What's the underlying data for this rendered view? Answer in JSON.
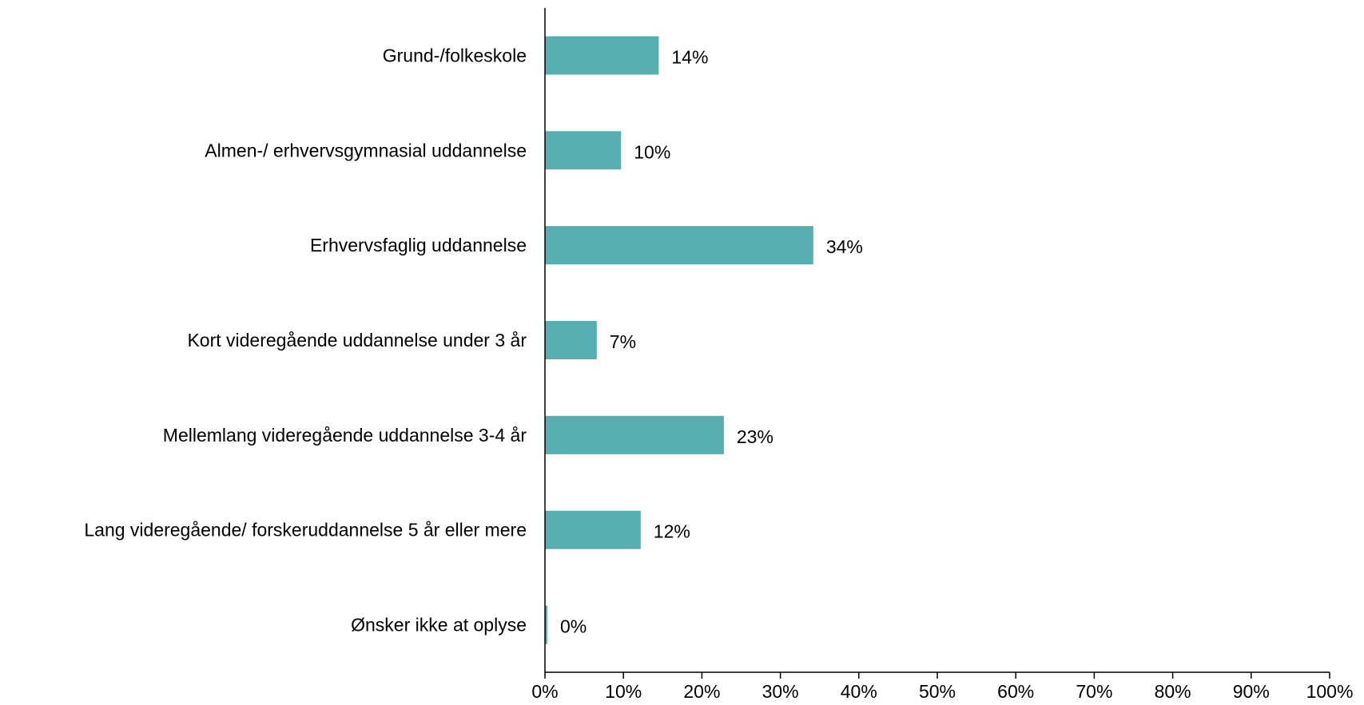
{
  "chart_data": {
    "type": "bar",
    "orientation": "horizontal",
    "title": "",
    "xlabel": "",
    "ylabel": "",
    "categories": [
      "Grund-/folkeskole",
      "Almen-/ erhvervsgymnasial uddannelse",
      "Erhvervsfaglig uddannelse",
      "Kort videregående uddannelse under 3 år",
      "Mellemlang videregående uddannelse 3-4 år",
      "Lang videregående/ forskeruddannelse 5 år eller mere",
      "Ønsker ikke at oplyse"
    ],
    "values": [
      14.5,
      9.7,
      34.2,
      6.6,
      22.8,
      12.2,
      0.3
    ],
    "data_labels": [
      "14%",
      "10%",
      "34%",
      "7%",
      "23%",
      "12%",
      "0%"
    ],
    "xlim": [
      0,
      100
    ],
    "xticks": [
      0,
      10,
      20,
      30,
      40,
      50,
      60,
      70,
      80,
      90,
      100
    ],
    "xtick_labels": [
      "0%",
      "10%",
      "20%",
      "30%",
      "40%",
      "50%",
      "60%",
      "70%",
      "80%",
      "90%",
      "100%"
    ],
    "bar_color": "#56aeb0",
    "axis_color": "#000000",
    "grid": false,
    "legend": "none"
  }
}
